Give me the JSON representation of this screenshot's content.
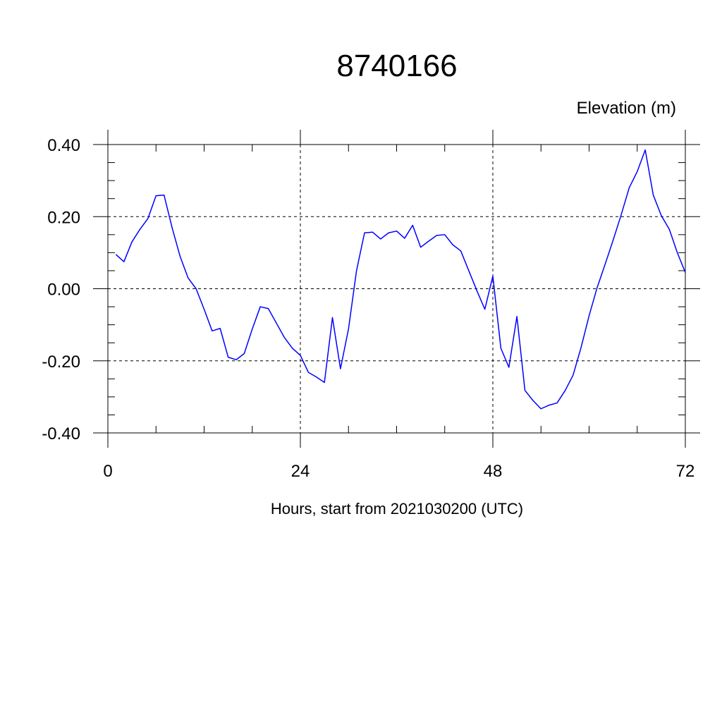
{
  "chart_data": {
    "type": "line",
    "title": "8740166",
    "ylabel": "Elevation (m)",
    "xlabel": "Hours, start from 2021030200 (UTC)",
    "xlim": [
      0,
      72
    ],
    "ylim": [
      -0.4,
      0.4
    ],
    "x_ticks": [
      0,
      24,
      48,
      72
    ],
    "x_tick_labels": [
      "0",
      "24",
      "48",
      "72"
    ],
    "y_ticks": [
      -0.4,
      -0.2,
      0.0,
      0.2,
      0.4
    ],
    "y_tick_labels": [
      "-0.40",
      "-0.20",
      "0.00",
      "0.20",
      "0.40"
    ],
    "x_minor_step": 6,
    "y_minor_step": 0.05,
    "grid": true,
    "grid_style": "dashed",
    "line_color": "#0000ff",
    "series": [
      {
        "x": [
          1,
          2,
          3,
          4,
          5,
          6,
          7,
          8,
          9,
          10,
          11,
          12,
          13,
          14,
          15,
          16,
          17,
          18,
          19,
          20,
          21,
          22,
          23,
          24,
          25,
          26,
          27,
          28,
          29,
          30,
          31,
          32,
          33,
          34,
          35,
          36,
          37,
          38,
          39,
          40,
          41,
          42,
          43,
          44,
          45,
          46,
          47,
          48,
          49,
          50,
          51,
          52,
          53,
          54,
          55,
          56,
          57,
          58,
          59,
          60,
          61,
          62,
          63,
          64,
          65,
          66,
          67,
          68,
          69,
          70,
          71,
          72
        ],
        "values": [
          0.095,
          0.075,
          0.13,
          0.165,
          0.195,
          0.258,
          0.26,
          0.17,
          0.09,
          0.03,
          0.0,
          -0.057,
          -0.117,
          -0.11,
          -0.19,
          -0.197,
          -0.18,
          -0.112,
          -0.05,
          -0.055,
          -0.095,
          -0.135,
          -0.165,
          -0.185,
          -0.232,
          -0.245,
          -0.26,
          -0.08,
          -0.222,
          -0.112,
          0.05,
          0.155,
          0.157,
          0.138,
          0.155,
          0.16,
          0.14,
          0.176,
          0.115,
          0.132,
          0.148,
          0.15,
          0.122,
          0.105,
          0.05,
          -0.005,
          -0.057,
          0.035,
          -0.165,
          -0.218,
          -0.077,
          -0.282,
          -0.31,
          -0.333,
          -0.323,
          -0.317,
          -0.283,
          -0.24,
          -0.163,
          -0.075,
          0.003,
          0.068,
          0.135,
          0.205,
          0.28,
          0.325,
          0.385,
          0.26,
          0.203,
          0.165,
          0.1,
          0.045
        ]
      }
    ]
  }
}
